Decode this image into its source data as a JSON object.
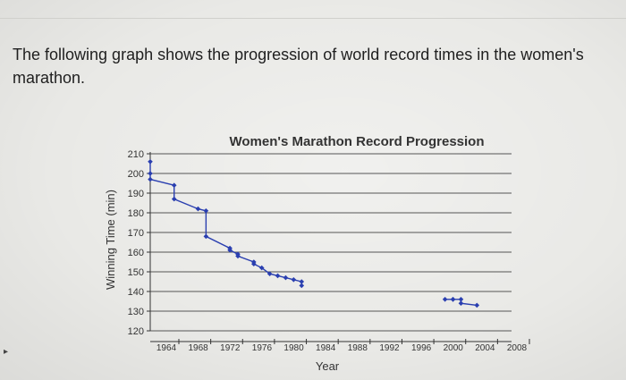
{
  "question": {
    "text": "The following graph shows the progression of world record times in the women's marathon."
  },
  "chart_data": {
    "type": "line",
    "title": "Women's Marathon Record Progression",
    "xlabel": "Year",
    "ylabel": "Winning Time (min)",
    "x_ticks": [
      1964,
      1968,
      1972,
      1976,
      1980,
      1984,
      1988,
      1992,
      1996,
      2000,
      2004,
      2008
    ],
    "y_ticks": [
      120,
      130,
      140,
      150,
      160,
      170,
      180,
      190,
      200,
      210
    ],
    "xlim": [
      1964,
      2008
    ],
    "ylim": [
      120,
      210
    ],
    "grid": "horizontal",
    "series": [
      {
        "color": "#2a3fb0",
        "x": [
          1964,
          1964,
          1964,
          1967,
          1967,
          1970,
          1971,
          1971,
          1974,
          1974,
          1975,
          1975,
          1977,
          1977,
          1978,
          1979,
          1980,
          1981,
          1982,
          1983,
          1983,
          2001,
          2002,
          2002,
          2003,
          2003,
          2005
        ],
        "y": [
          206,
          200,
          197,
          194,
          187,
          182,
          181,
          168,
          162,
          161,
          159,
          158,
          155,
          154,
          152,
          149,
          148,
          147,
          146,
          145,
          143,
          136,
          136,
          136,
          136,
          134,
          133
        ]
      }
    ]
  }
}
